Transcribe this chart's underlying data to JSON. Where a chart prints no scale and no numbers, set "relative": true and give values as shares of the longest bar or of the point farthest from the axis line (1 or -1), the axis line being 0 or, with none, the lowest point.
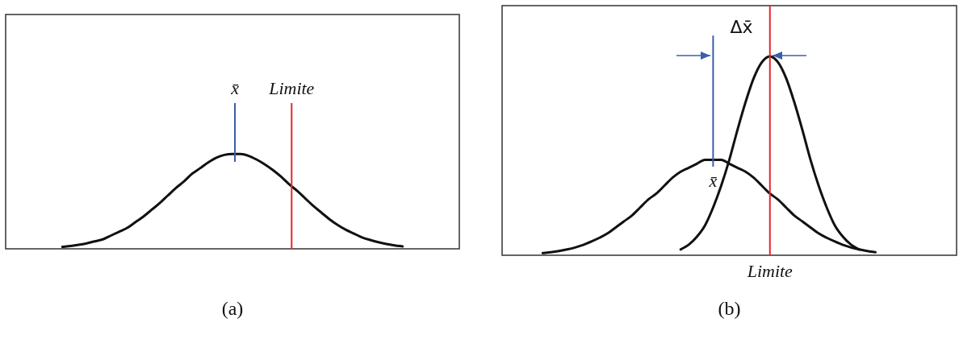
{
  "chart_data": [
    {
      "type": "line",
      "relative": true,
      "tick_labels": false,
      "grid": false,
      "legend": false,
      "marker": "none",
      "line_style": "solid",
      "xlabel": "(a)",
      "categories": [
        null,
        null,
        null,
        null,
        null,
        null,
        null,
        null,
        null,
        null,
        null,
        null,
        null,
        null,
        null,
        null,
        null,
        null,
        null,
        null,
        null,
        null,
        null,
        null,
        null,
        null,
        null,
        null,
        null,
        null,
        null,
        null,
        null,
        null,
        null,
        null,
        null,
        null,
        null,
        null,
        null,
        null,
        null,
        null,
        null,
        null,
        null,
        null,
        null,
        null,
        null,
        null,
        null,
        null,
        null,
        null,
        null
      ],
      "series": [
        {
          "color": "#111111",
          "values": [
            null,
            null,
            null,
            null,
            null,
            null,
            null,
            0.021,
            0.03,
            0.042,
            0.058,
            0.079,
            0.1,
            0.14,
            0.18,
            0.22,
            0.28,
            0.34,
            0.41,
            0.48,
            0.56,
            0.64,
            0.71,
            0.79,
            0.85,
            0.91,
            0.96,
            0.99,
            1.0,
            1.0,
            0.98,
            0.94,
            0.89,
            0.83,
            0.76,
            0.68,
            0.61,
            0.53,
            0.45,
            0.38,
            0.31,
            0.25,
            0.2,
            0.16,
            0.12,
            0.093,
            0.07,
            0.051,
            0.037,
            0.026,
            null,
            null,
            null,
            null,
            null,
            null,
            null
          ]
        }
      ],
      "annotations": [
        "x̄",
        "Limite"
      ]
    },
    {
      "type": "line",
      "relative": true,
      "tick_labels": false,
      "grid": false,
      "legend": false,
      "marker": "none",
      "line_style": "solid",
      "xlabel": "(b)",
      "categories": [
        null,
        null,
        null,
        null,
        null,
        null,
        null,
        null,
        null,
        null,
        null,
        null,
        null,
        null,
        null,
        null,
        null,
        null,
        null,
        null,
        null,
        null,
        null,
        null,
        null,
        null,
        null,
        null,
        null,
        null,
        null,
        null,
        null,
        null,
        null,
        null,
        null,
        null,
        null,
        null,
        null,
        null,
        null,
        null,
        null,
        null,
        null,
        null,
        null,
        null,
        null,
        null,
        null,
        null,
        null,
        null,
        null
      ],
      "series": [
        {
          "color": "#111111",
          "values": [
            null,
            null,
            null,
            null,
            null,
            0.011,
            0.015,
            0.021,
            0.029,
            0.039,
            0.052,
            0.069,
            0.088,
            0.11,
            0.14,
            0.17,
            0.2,
            0.24,
            0.28,
            0.31,
            0.35,
            0.39,
            0.42,
            0.44,
            0.46,
            0.48,
            0.48,
            0.48,
            0.46,
            0.44,
            0.42,
            0.39,
            0.35,
            0.31,
            0.28,
            0.24,
            0.2,
            0.17,
            0.14,
            0.11,
            0.088,
            0.069,
            0.052,
            0.039,
            0.029,
            0.021,
            0.015,
            null,
            null,
            null,
            null,
            null,
            null,
            null,
            null,
            null,
            null
          ]
        },
        {
          "color": "#111111",
          "values": [
            null,
            null,
            null,
            null,
            null,
            null,
            null,
            null,
            null,
            null,
            null,
            null,
            null,
            null,
            null,
            null,
            null,
            null,
            null,
            null,
            null,
            null,
            0.029,
            0.053,
            0.093,
            0.15,
            0.24,
            0.35,
            0.48,
            0.63,
            0.77,
            0.89,
            0.97,
            1.0,
            0.97,
            0.89,
            0.77,
            0.63,
            0.48,
            0.35,
            0.24,
            0.15,
            0.093,
            0.053,
            0.029,
            null,
            null,
            null,
            null,
            null,
            null,
            null,
            null,
            null,
            null,
            null,
            null
          ]
        }
      ],
      "annotations": [
        "Δx̄",
        "x̄",
        "Limite"
      ]
    }
  ]
}
